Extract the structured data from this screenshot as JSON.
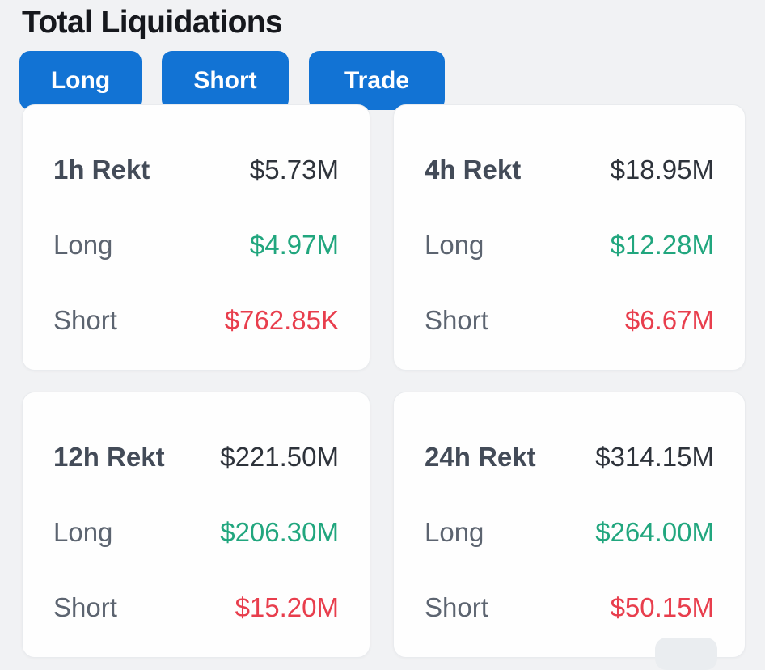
{
  "page": {
    "title": "Total Liquidations",
    "background_color": "#f1f2f4"
  },
  "filters": {
    "active_background_color": "#1273d4",
    "text_color": "#ffffff",
    "buttons": [
      {
        "label": "Long"
      },
      {
        "label": "Short"
      },
      {
        "label": "Trade"
      }
    ]
  },
  "colors": {
    "long_value": "#21a67e",
    "short_value": "#e83e4d",
    "card_background": "#fefefe",
    "card_border": "#e9ebee",
    "period_label": "#434b58",
    "total_value": "#2e333b",
    "side_label": "#5c6470"
  },
  "cards": [
    {
      "period_label": "1h Rekt",
      "total": "$5.73M",
      "long_label": "Long",
      "long_value": "$4.97M",
      "short_label": "Short",
      "short_value": "$762.85K"
    },
    {
      "period_label": "4h Rekt",
      "total": "$18.95M",
      "long_label": "Long",
      "long_value": "$12.28M",
      "short_label": "Short",
      "short_value": "$6.67M"
    },
    {
      "period_label": "12h Rekt",
      "total": "$221.50M",
      "long_label": "Long",
      "long_value": "$206.30M",
      "short_label": "Short",
      "short_value": "$15.20M"
    },
    {
      "period_label": "24h Rekt",
      "total": "$314.15M",
      "long_label": "Long",
      "long_value": "$264.00M",
      "short_label": "Short",
      "short_value": "$50.15M"
    }
  ]
}
